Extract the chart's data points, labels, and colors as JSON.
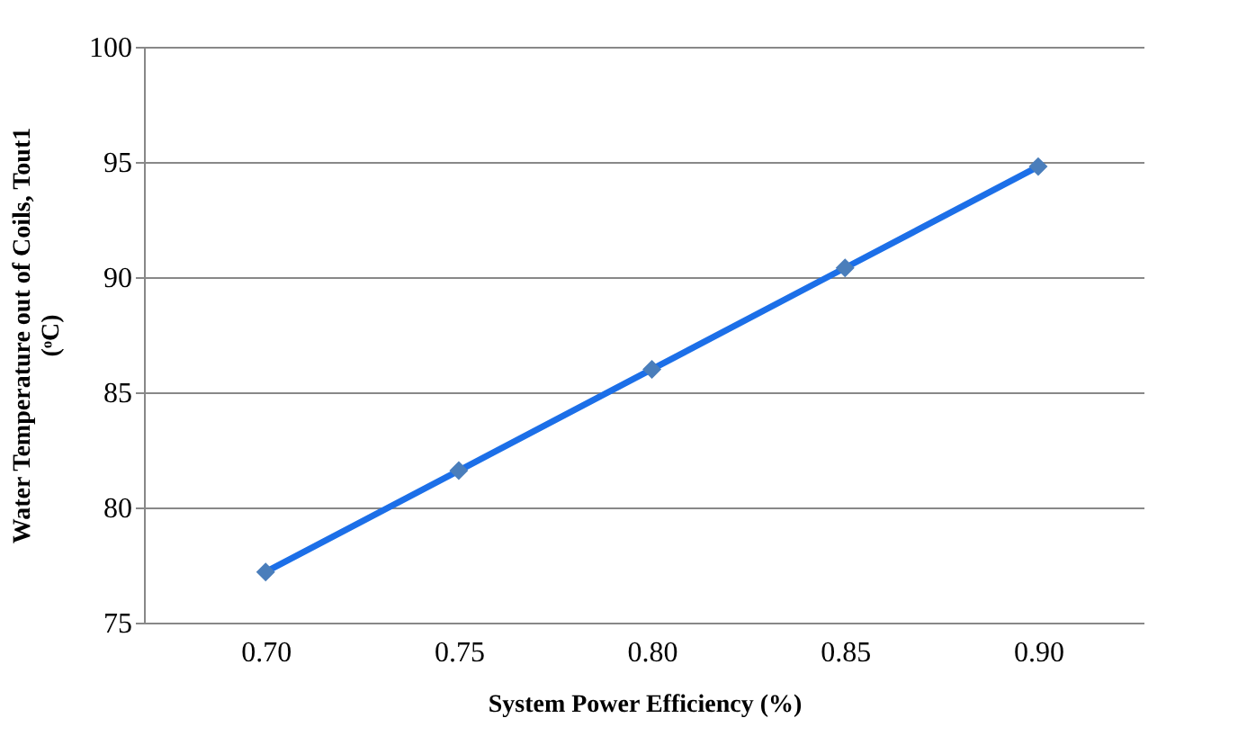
{
  "chart_data": {
    "type": "line",
    "xlabel": "System Power Efficiency (%)",
    "ylabel": "Water Temperature out of Coils, Tout1 (ᵒC)",
    "categories": [
      "0.70",
      "0.75",
      "0.80",
      "0.85",
      "0.90"
    ],
    "series": [
      {
        "color": "#1c6fe8",
        "values": [
          77.2,
          81.6,
          86.0,
          90.4,
          94.8
        ]
      }
    ],
    "ylim": [
      75,
      100
    ],
    "yticks": [
      75,
      80,
      85,
      90,
      95,
      100
    ],
    "grid": "y",
    "marker": "diamond",
    "line_style": "solid"
  }
}
